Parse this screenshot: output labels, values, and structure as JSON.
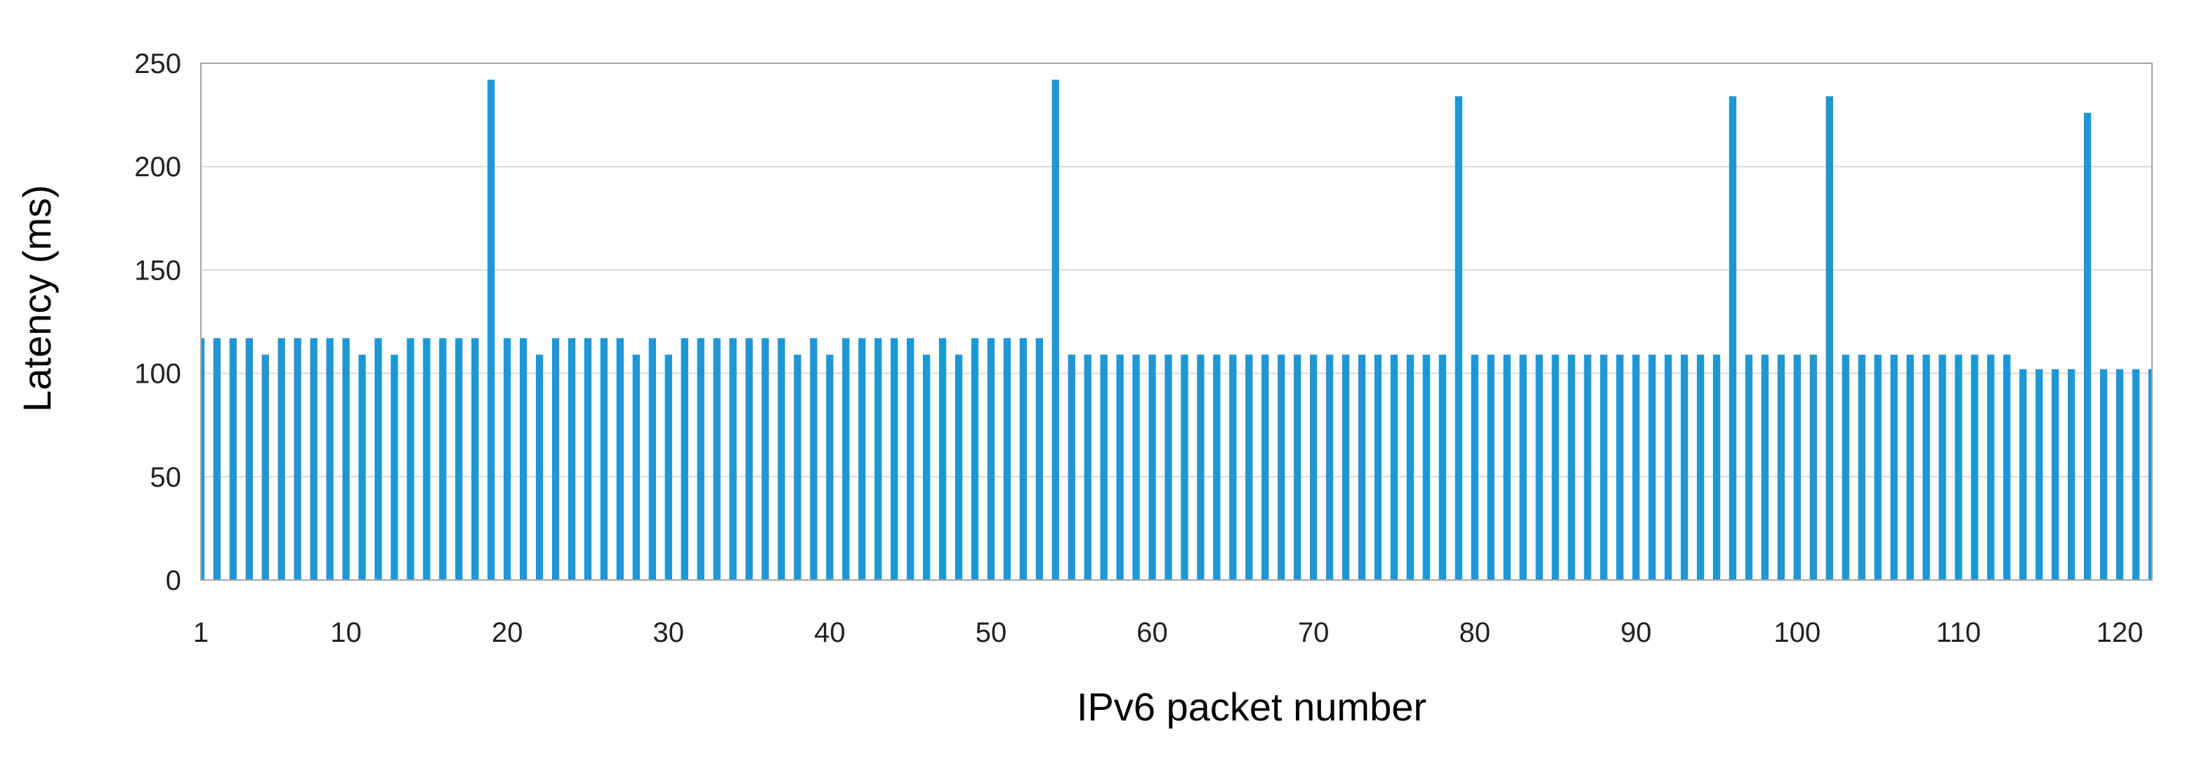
{
  "chart_data": {
    "type": "bar",
    "xlabel": "IPv6 packet number",
    "ylabel": "Latency (ms)",
    "ylim": [
      0,
      250
    ],
    "yticks": [
      0,
      50,
      100,
      150,
      200,
      250
    ],
    "xtick_labels": [
      "1",
      "10",
      "20",
      "30",
      "40",
      "50",
      "60",
      "70",
      "80",
      "90",
      "100",
      "110",
      "120"
    ],
    "grid": "horizontal",
    "bar_color": "#1f97d4",
    "categories": [
      1,
      2,
      3,
      4,
      5,
      6,
      7,
      8,
      9,
      10,
      11,
      12,
      13,
      14,
      15,
      16,
      17,
      18,
      19,
      20,
      21,
      22,
      23,
      24,
      25,
      26,
      27,
      28,
      29,
      30,
      31,
      32,
      33,
      34,
      35,
      36,
      37,
      38,
      39,
      40,
      41,
      42,
      43,
      44,
      45,
      46,
      47,
      48,
      49,
      50,
      51,
      52,
      53,
      54,
      55,
      56,
      57,
      58,
      59,
      60,
      61,
      62,
      63,
      64,
      65,
      66,
      67,
      68,
      69,
      70,
      71,
      72,
      73,
      74,
      75,
      76,
      77,
      78,
      79,
      80,
      81,
      82,
      83,
      84,
      85,
      86,
      87,
      88,
      89,
      90,
      91,
      92,
      93,
      94,
      95,
      96,
      97,
      98,
      99,
      100,
      101,
      102,
      103,
      104,
      105,
      106,
      107,
      108,
      109,
      110,
      111,
      112,
      113,
      114,
      115,
      116,
      117,
      118,
      119,
      120,
      121,
      122
    ],
    "values": [
      117,
      117,
      117,
      117,
      109,
      117,
      117,
      117,
      117,
      117,
      109,
      117,
      109,
      117,
      117,
      117,
      117,
      117,
      242,
      117,
      117,
      109,
      117,
      117,
      117,
      117,
      117,
      109,
      117,
      109,
      117,
      117,
      117,
      117,
      117,
      117,
      117,
      109,
      117,
      109,
      117,
      117,
      117,
      117,
      117,
      109,
      117,
      109,
      117,
      117,
      117,
      117,
      117,
      242,
      109,
      109,
      109,
      109,
      109,
      109,
      109,
      109,
      109,
      109,
      109,
      109,
      109,
      109,
      109,
      109,
      109,
      109,
      109,
      109,
      109,
      109,
      109,
      109,
      234,
      109,
      109,
      109,
      109,
      109,
      109,
      109,
      109,
      109,
      109,
      109,
      109,
      109,
      109,
      109,
      109,
      234,
      109,
      109,
      109,
      109,
      109,
      234,
      109,
      109,
      109,
      109,
      109,
      109,
      109,
      109,
      109,
      109,
      109,
      102,
      102,
      102,
      102,
      226,
      102,
      102,
      102,
      102
    ]
  }
}
